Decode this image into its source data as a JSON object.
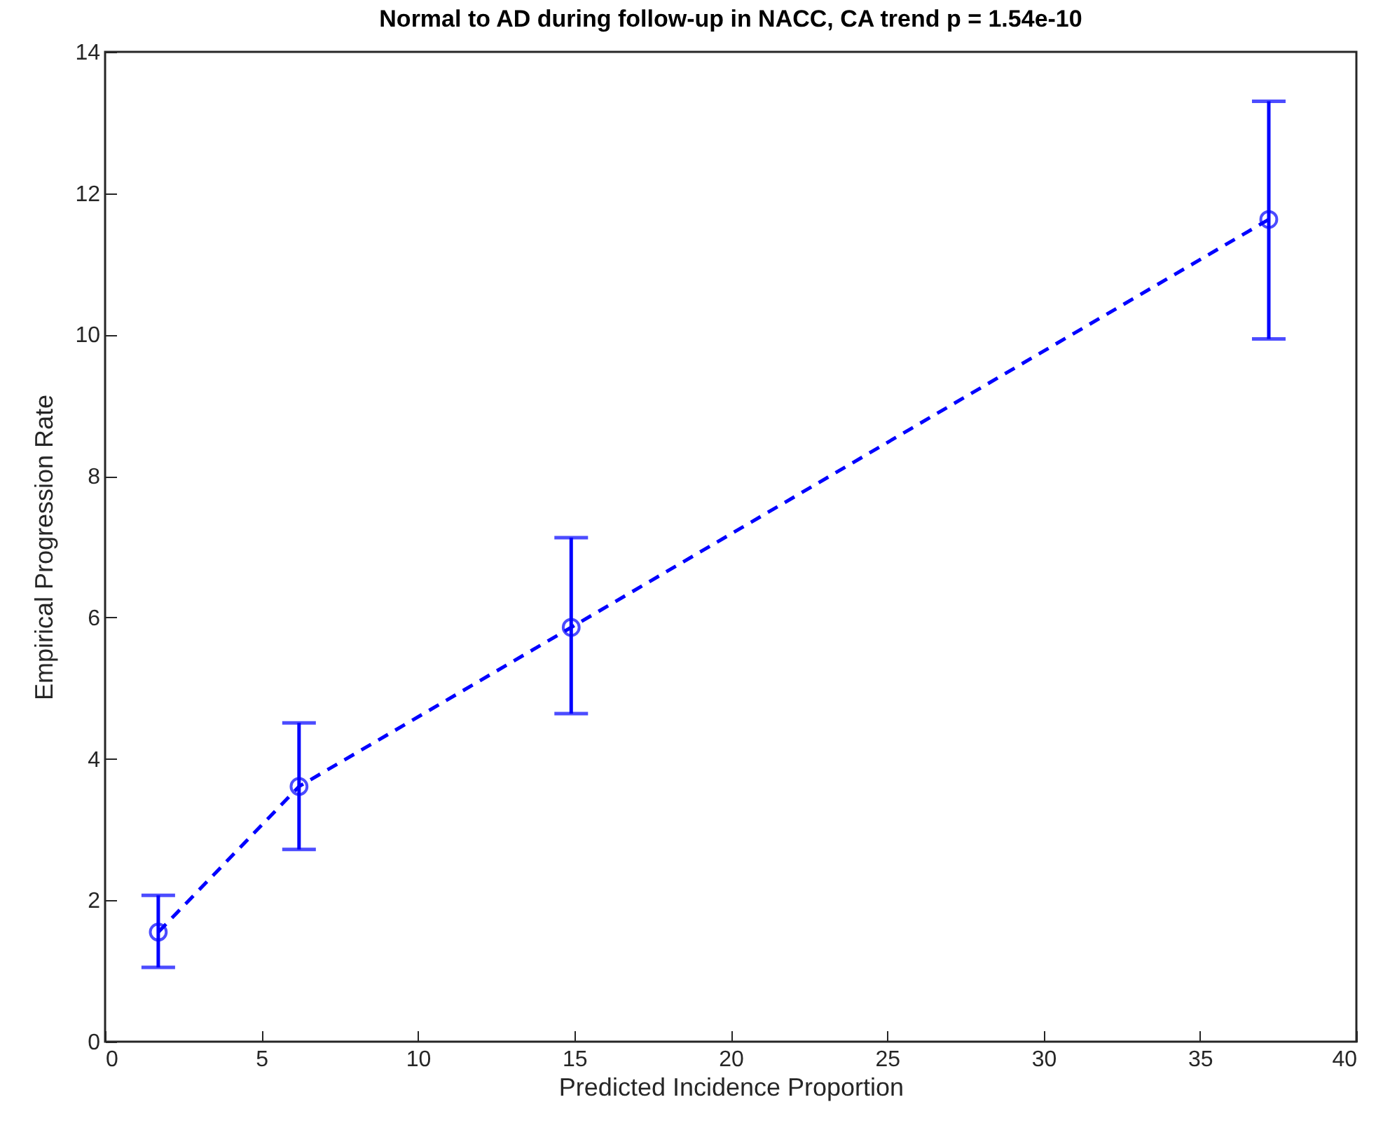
{
  "chart_data": {
    "type": "line",
    "title": "Normal to AD during follow-up in NACC, CA trend p = 1.54e-10",
    "xlabel": "Predicted Incidence Proportion",
    "ylabel": "Empirical Progression Rate",
    "x": [
      1.7,
      6.2,
      14.9,
      37.2
    ],
    "series": [
      {
        "color": "#0000ff",
        "values": [
          1.55,
          3.61,
          5.86,
          11.63
        ],
        "errors": [
          [
            1.05,
            2.07
          ],
          [
            2.72,
            4.51
          ],
          [
            4.64,
            7.13
          ],
          [
            9.94,
            13.3
          ]
        ]
      }
    ],
    "xlim": [
      0,
      40
    ],
    "xticks": [
      0,
      5,
      10,
      15,
      20,
      25,
      30,
      35,
      40
    ],
    "ylim": [
      0,
      14
    ],
    "yticks": [
      0,
      2,
      4,
      6,
      8,
      10,
      12,
      14
    ],
    "grid": false,
    "marker": "circle",
    "line_style": "dashed"
  }
}
